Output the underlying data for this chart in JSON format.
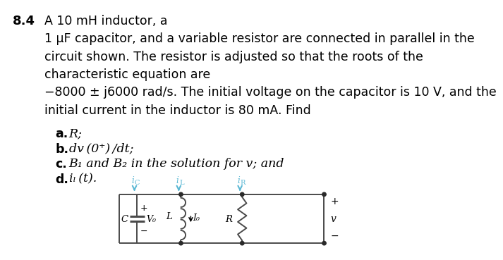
{
  "bg_color": "#ffffff",
  "text_color": "#000000",
  "cyan_color": "#5bb8d4",
  "problem_number": "8.4",
  "line1": "A 10 mH inductor, a",
  "line2": "1 μF capacitor, and a variable resistor are connected in parallel in the",
  "line3": "circuit shown. The resistor is adjusted so that the roots of the",
  "line4": "characteristic equation are",
  "line5": "−8000 ± j6000 rad/s. The initial voltage on the capacitor is 10 V, and the",
  "line6": "initial current in the inductor is 80 mA. Find",
  "font_size_main": 12.5,
  "font_size_num": 13,
  "circuit_lw": 1.4,
  "wire_color": "#4a4a4a",
  "dot_color": "#2a2a2a"
}
